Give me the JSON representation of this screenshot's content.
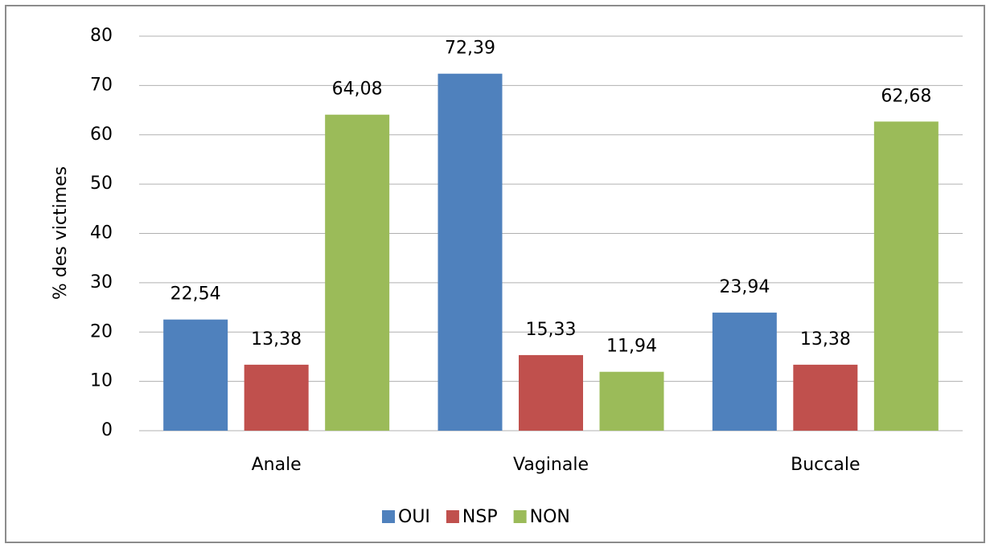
{
  "chart_data": {
    "type": "bar",
    "y_label": "% des victimes",
    "categories": [
      "Anale",
      "Vaginale",
      "Buccale"
    ],
    "series": [
      {
        "name": "OUI",
        "color": "#4f81bd",
        "values": [
          22.54,
          72.39,
          23.94
        ],
        "value_labels": [
          "22,54",
          "72,39",
          "23,94"
        ]
      },
      {
        "name": "NSP",
        "color": "#c0504d",
        "values": [
          13.38,
          15.33,
          13.38
        ],
        "value_labels": [
          "13,38",
          "15,33",
          "13,38"
        ]
      },
      {
        "name": "NON",
        "color": "#9bbb59",
        "values": [
          64.08,
          11.94,
          62.68
        ],
        "value_labels": [
          "64,08",
          "11,94",
          "62,68"
        ]
      }
    ],
    "ylim": [
      0,
      80
    ],
    "yticks": [
      0,
      10,
      20,
      30,
      40,
      50,
      60,
      70,
      80
    ],
    "grid": true,
    "legend": "bottom"
  }
}
